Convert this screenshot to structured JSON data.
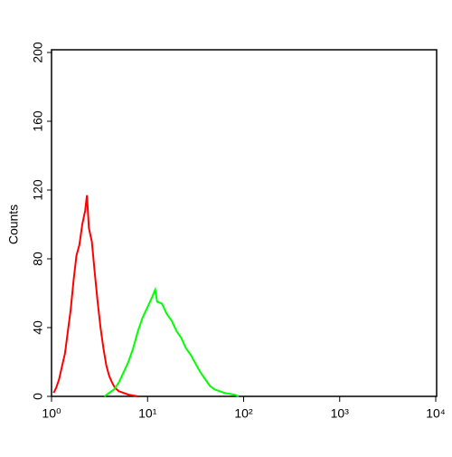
{
  "chart_data": {
    "type": "line",
    "x_scale": "log",
    "y_label": "Counts",
    "xlim": [
      1,
      10000
    ],
    "xticks": [
      {
        "value": 1,
        "label": "10⁰"
      },
      {
        "value": 10,
        "label": "10¹"
      },
      {
        "value": 100,
        "label": "10²"
      },
      {
        "value": 1000,
        "label": "10³"
      },
      {
        "value": 10000,
        "label": "10⁴"
      }
    ],
    "ylim": [
      0,
      200
    ],
    "yticks": [
      0,
      40,
      80,
      120,
      160,
      200
    ],
    "series": [
      {
        "color": "#ff0000",
        "x": [
          1.05,
          1.12,
          1.2,
          1.29,
          1.38,
          1.48,
          1.58,
          1.7,
          1.82,
          1.95,
          2.09,
          2.24,
          2.34,
          2.45,
          2.63,
          2.82,
          3.02,
          3.24,
          3.47,
          3.72,
          3.98,
          4.27,
          4.57,
          5.01,
          5.62,
          6.31,
          7.94
        ],
        "values": [
          2,
          5,
          10,
          18,
          25,
          38,
          50,
          68,
          82,
          88,
          100,
          108,
          117,
          98,
          90,
          72,
          55,
          40,
          28,
          18,
          12,
          8,
          5,
          3,
          2,
          1,
          0
        ]
      },
      {
        "color": "#00ff00",
        "x": [
          3.55,
          3.98,
          4.47,
          5.01,
          5.62,
          6.31,
          7.08,
          7.94,
          8.91,
          10,
          11.2,
          12,
          12.6,
          14.1,
          15.8,
          17.8,
          20,
          22.4,
          25.1,
          28.2,
          31.6,
          35.5,
          39.8,
          44.7,
          50.1,
          63.1,
          79.4,
          89.1
        ],
        "values": [
          0,
          2,
          4,
          8,
          14,
          20,
          28,
          38,
          46,
          52,
          58,
          62,
          55,
          54,
          48,
          44,
          38,
          34,
          28,
          24,
          19,
          14,
          10,
          6,
          4,
          2,
          1,
          0
        ]
      }
    ]
  }
}
